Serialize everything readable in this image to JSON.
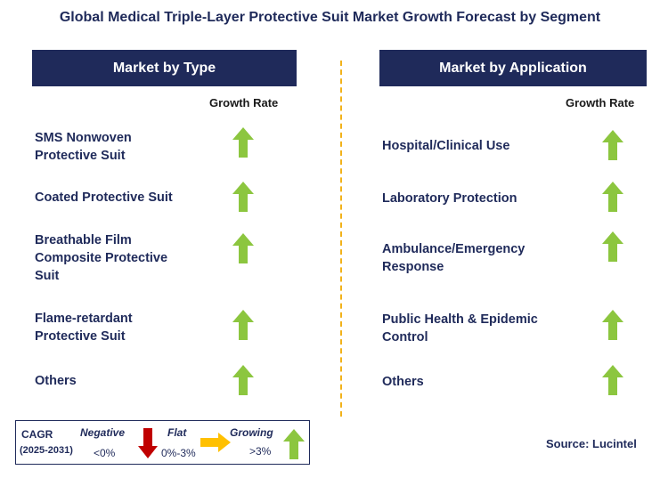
{
  "title": "Global Medical Triple-Layer Protective Suit Market Growth Forecast by Segment",
  "colors": {
    "navy": "#1f2a5a",
    "green": "#8cc63f",
    "red": "#c00000",
    "orange": "#ffc000",
    "divider": "#f2b21b"
  },
  "left_panel": {
    "header": "Market by Type",
    "growth_label": "Growth Rate",
    "rows": [
      {
        "label": "SMS Nonwoven\nProtective Suit",
        "trend": "up"
      },
      {
        "label": "Coated Protective Suit",
        "trend": "up"
      },
      {
        "label": "Breathable Film\nComposite Protective\nSuit",
        "trend": "up"
      },
      {
        "label": "Flame-retardant\nProtective Suit",
        "trend": "up"
      },
      {
        "label": "Others",
        "trend": "up"
      }
    ]
  },
  "right_panel": {
    "header": "Market by Application",
    "growth_label": "Growth Rate",
    "rows": [
      {
        "label": "Hospital/Clinical Use",
        "trend": "up"
      },
      {
        "label": "Laboratory Protection",
        "trend": "up"
      },
      {
        "label": "Ambulance/Emergency\nResponse",
        "trend": "up"
      },
      {
        "label": "Public Health & Epidemic\nControl",
        "trend": "up"
      },
      {
        "label": "Others",
        "trend": "up"
      }
    ]
  },
  "legend": {
    "cagr": "CAGR",
    "period": "(2025-2031)",
    "negative": {
      "label": "Negative",
      "range": "<0%",
      "icon": "down-arrow-icon"
    },
    "flat": {
      "label": "Flat",
      "range": "0%-3%",
      "icon": "right-arrow-icon"
    },
    "growing": {
      "label": "Growing",
      "range": ">3%",
      "icon": "up-arrow-icon"
    }
  },
  "source": "Source: Lucintel"
}
